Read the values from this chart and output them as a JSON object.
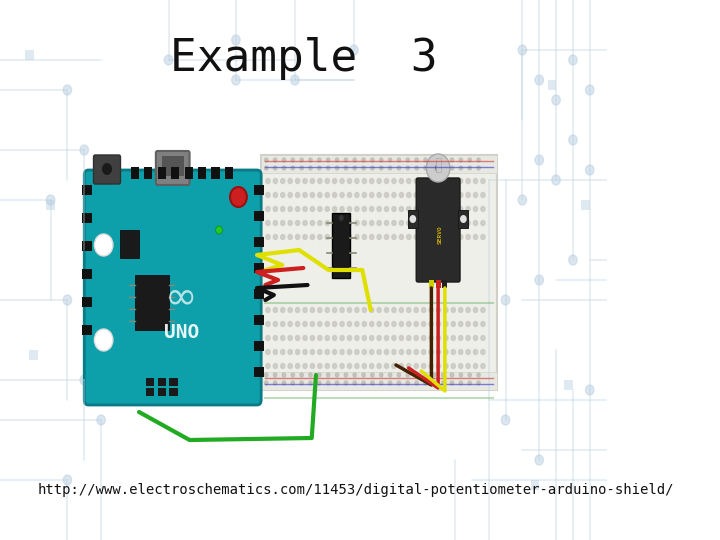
{
  "title": "Example  3",
  "url": "http://www.electroschematics.com/11453/digital-potentiometer-arduino-shield/",
  "title_fontsize": 32,
  "url_fontsize": 10,
  "title_color": "#111111",
  "url_color": "#111111",
  "bg_color": "#ffffff",
  "circuit_bg_color": "#ccdbe8",
  "arduino_color": "#0d9faa",
  "breadboard_color": "#f2f0eb",
  "servo_color": "#2a2a2a"
}
